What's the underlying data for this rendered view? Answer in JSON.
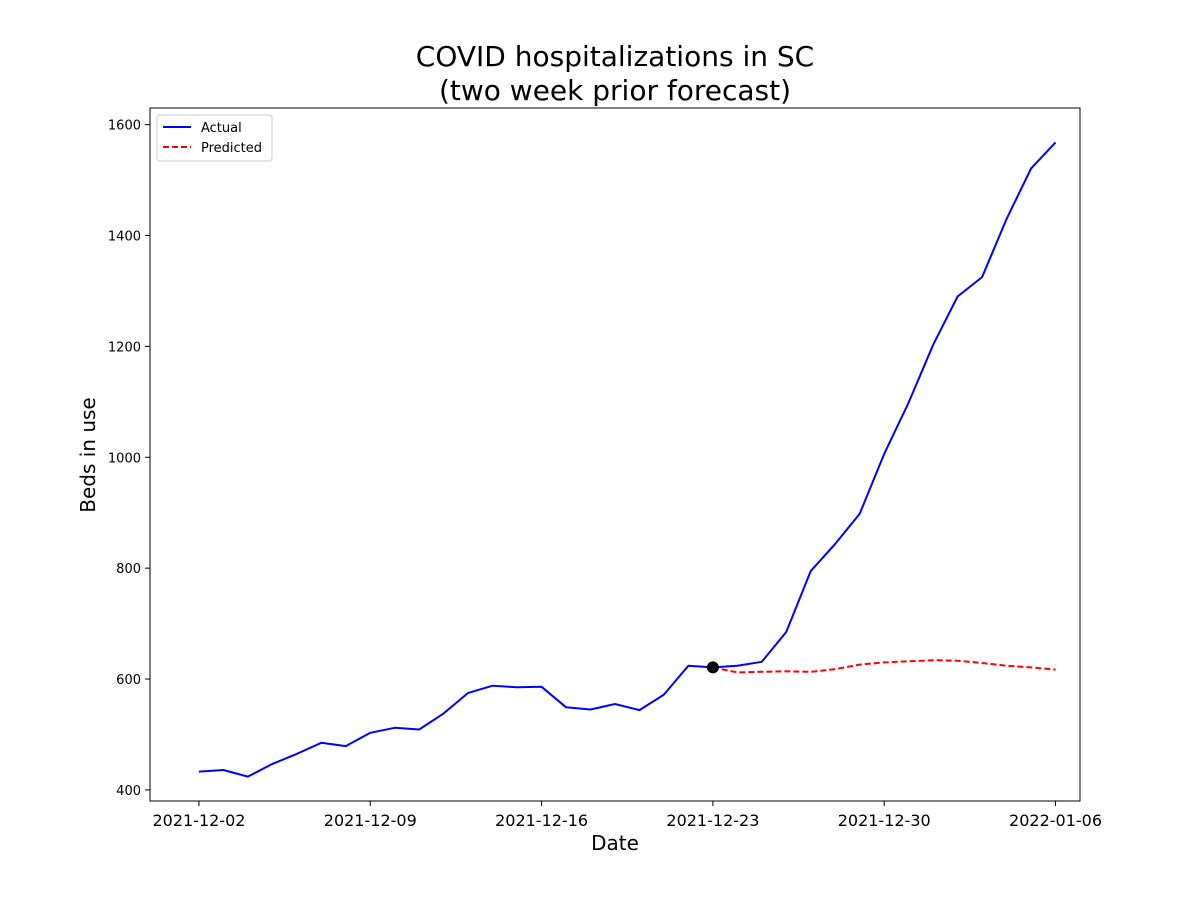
{
  "chart_data": {
    "type": "line",
    "title": [
      "COVID hospitalizations in SC",
      "(two week prior forecast)"
    ],
    "xlabel": "Date",
    "ylabel": "Beds in use",
    "x_ticks": [
      "2021-12-02",
      "2021-12-09",
      "2021-12-16",
      "2021-12-23",
      "2021-12-30",
      "2022-01-06"
    ],
    "y_ticks": [
      400,
      600,
      800,
      1000,
      1200,
      1400,
      1600
    ],
    "xlim": [
      "2021-12-00",
      "2022-01-07"
    ],
    "ylim": [
      380,
      1630
    ],
    "grid": false,
    "legend_placement": "upper left",
    "series": [
      {
        "name": "Actual",
        "color": "#0000ff",
        "style": "solid",
        "x": [
          "2021-12-02",
          "2021-12-03",
          "2021-12-04",
          "2021-12-05",
          "2021-12-06",
          "2021-12-07",
          "2021-12-08",
          "2021-12-09",
          "2021-12-10",
          "2021-12-11",
          "2021-12-12",
          "2021-12-13",
          "2021-12-14",
          "2021-12-15",
          "2021-12-16",
          "2021-12-17",
          "2021-12-18",
          "2021-12-19",
          "2021-12-20",
          "2021-12-21",
          "2021-12-22",
          "2021-12-23",
          "2021-12-24",
          "2021-12-25",
          "2021-12-26",
          "2021-12-27",
          "2021-12-28",
          "2021-12-29",
          "2021-12-30",
          "2021-12-31",
          "2022-01-01",
          "2022-01-02",
          "2022-01-03",
          "2022-01-04",
          "2022-01-05",
          "2022-01-06"
        ],
        "values": [
          433,
          436,
          424,
          447,
          465,
          485,
          479,
          503,
          512,
          509,
          538,
          575,
          588,
          585,
          586,
          549,
          545,
          555,
          544,
          572,
          624,
          621,
          624,
          631,
          685,
          795,
          844,
          898,
          1006,
          1099,
          1203,
          1290,
          1325,
          1430,
          1521,
          1568
        ]
      },
      {
        "name": "Predicted",
        "color": "#ff0000",
        "style": "dashed",
        "x": [
          "2021-12-23",
          "2021-12-24",
          "2021-12-25",
          "2021-12-26",
          "2021-12-27",
          "2021-12-28",
          "2021-12-29",
          "2021-12-30",
          "2021-12-31",
          "2022-01-01",
          "2022-01-02",
          "2022-01-03",
          "2022-01-04",
          "2022-01-05",
          "2022-01-06"
        ],
        "values": [
          621,
          612,
          613,
          614,
          613,
          618,
          626,
          630,
          632,
          634,
          633,
          629,
          624,
          621,
          617
        ]
      }
    ],
    "markers": [
      {
        "x": "2021-12-23",
        "y": 621,
        "color": "#000000"
      }
    ]
  }
}
